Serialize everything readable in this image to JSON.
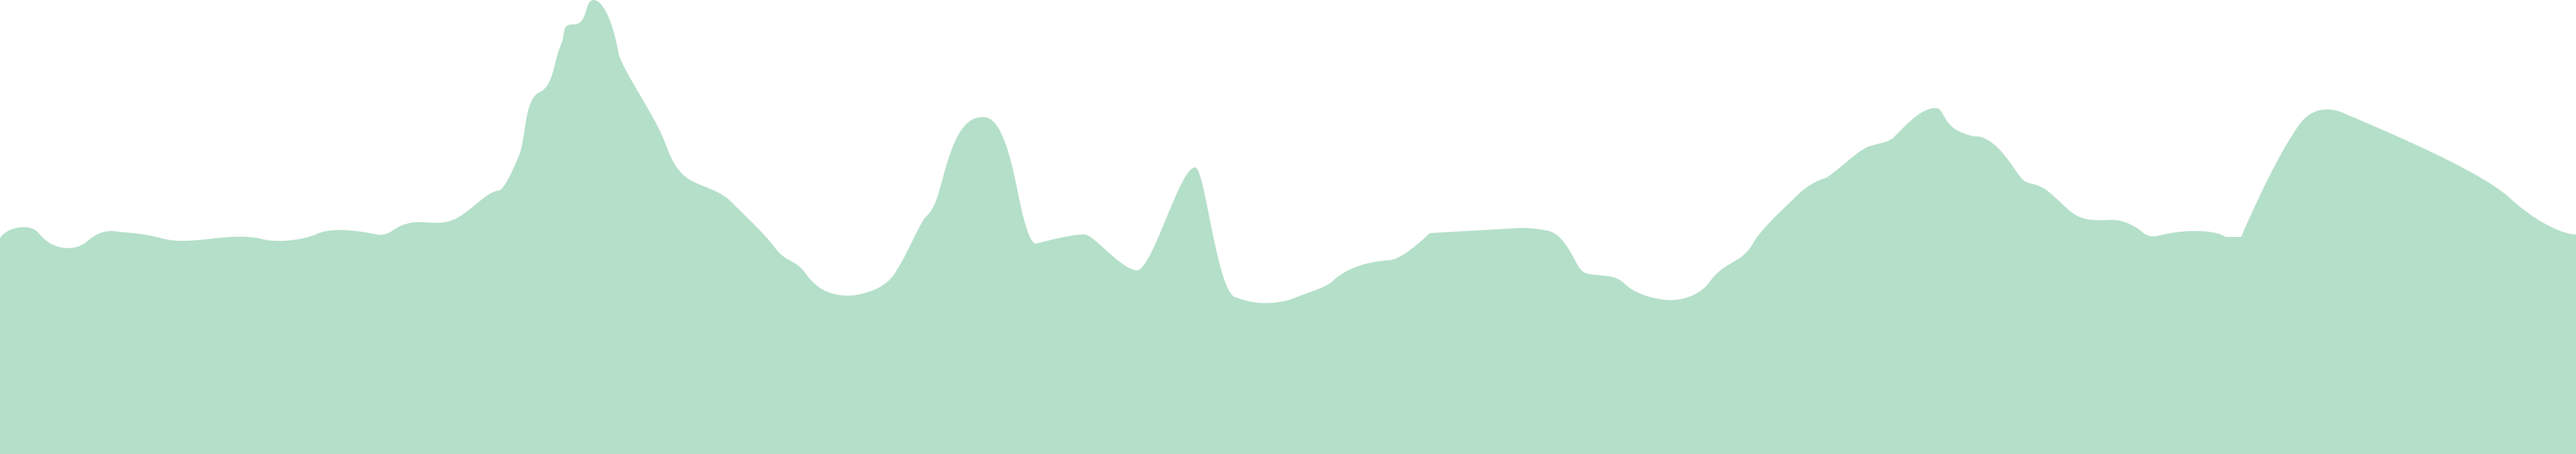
{
  "graphic": {
    "shape": "mountain-silhouette",
    "fill_color": "#b4dfc9",
    "background_color": "#ffffff"
  }
}
